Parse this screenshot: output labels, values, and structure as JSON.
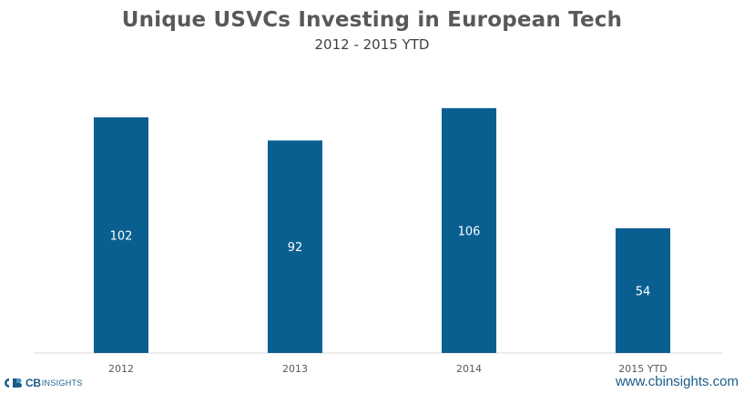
{
  "chart_data": {
    "type": "bar",
    "title": "Unique USVCs Investing in European Tech",
    "subtitle": "2012 - 2015 YTD",
    "categories": [
      "2012",
      "2013",
      "2014",
      "2015 YTD"
    ],
    "values": [
      102,
      92,
      106,
      54
    ],
    "ylim": [
      0,
      115
    ],
    "grid": false,
    "legend": "none",
    "bar_color": "#0a5f91",
    "label_color": "#ffffff"
  },
  "branding": {
    "logo_cb": "CB",
    "logo_insights": "INSIGHTS",
    "url": "www.cbinsights.com",
    "brand_color": "#1a5b8a"
  }
}
